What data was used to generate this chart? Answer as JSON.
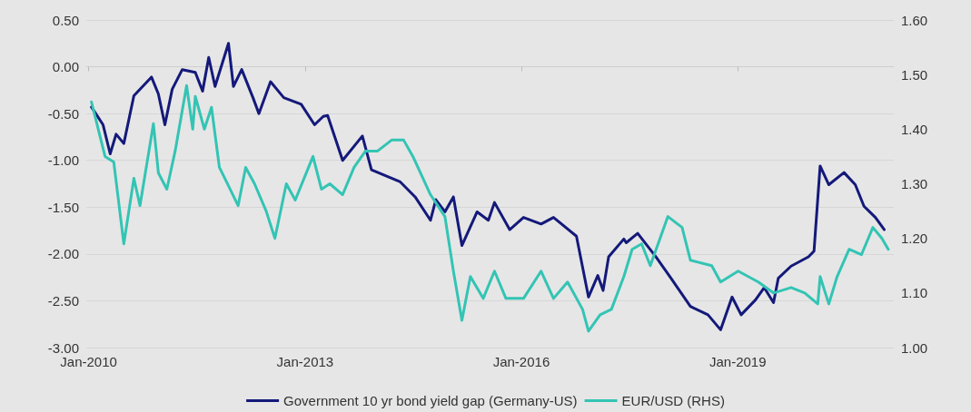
{
  "chart_data": {
    "type": "line",
    "xlim": [
      "2009-12-20",
      "2021-03-01"
    ],
    "xticks": [
      {
        "value": "2010-01-01",
        "label": "Jan-2010"
      },
      {
        "value": "2013-01-01",
        "label": "Jan-2013"
      },
      {
        "value": "2016-01-01",
        "label": "Jan-2016"
      },
      {
        "value": "2019-01-01",
        "label": "Jan-2019"
      }
    ],
    "ylim": [
      -3,
      0.5
    ],
    "yticks": [
      {
        "value": -3,
        "label": "-3.00"
      },
      {
        "value": -2.5,
        "label": "-2.50"
      },
      {
        "value": -2,
        "label": "-2.00"
      },
      {
        "value": -1.5,
        "label": "-1.50"
      },
      {
        "value": -1,
        "label": "-1.00"
      },
      {
        "value": -0.5,
        "label": "-0.50"
      },
      {
        "value": 0,
        "label": "0.00"
      },
      {
        "value": 0.5,
        "label": "0.50"
      }
    ],
    "y2lim": [
      1,
      1.6
    ],
    "y2ticks": [
      {
        "value": 1,
        "label": "1.00"
      },
      {
        "value": 1.1,
        "label": "1.10"
      },
      {
        "value": 1.2,
        "label": "1.20"
      },
      {
        "value": 1.3,
        "label": "1.30"
      },
      {
        "value": 1.4,
        "label": "1.40"
      },
      {
        "value": 1.5,
        "label": "1.50"
      },
      {
        "value": 1.6,
        "label": "1.60"
      }
    ],
    "grid": "y",
    "legend": "bottom",
    "marker": "none",
    "line_style": "solid",
    "series": [
      {
        "name": "Government 10 yr bond yield gap (Germany-US)",
        "color": "#14197a",
        "x": [
          "2010-01-15",
          "2010-03-15",
          "2010-04-20",
          "2010-05-20",
          "2010-06-28",
          "2010-08-18",
          "2010-11-15",
          "2010-12-20",
          "2011-01-22",
          "2011-02-28",
          "2011-04-20",
          "2011-06-25",
          "2011-08-01",
          "2011-09-01",
          "2011-10-03",
          "2011-12-10",
          "2012-01-04",
          "2012-02-15",
          "2012-04-12",
          "2012-05-12",
          "2012-07-10",
          "2012-09-15",
          "2012-12-12",
          "2013-02-18",
          "2013-04-03",
          "2013-04-25",
          "2013-07-10",
          "2013-10-18",
          "2013-12-03",
          "2014-04-28",
          "2014-07-12",
          "2014-09-28",
          "2014-10-25",
          "2014-12-10",
          "2015-01-22",
          "2015-03-06",
          "2015-05-22",
          "2015-07-18",
          "2015-08-18",
          "2015-11-03",
          "2016-01-12",
          "2016-04-10",
          "2016-06-12",
          "2016-10-06",
          "2016-12-06",
          "2017-01-22",
          "2017-02-18",
          "2017-03-18",
          "2017-06-03",
          "2017-06-15",
          "2017-08-12",
          "2017-11-12",
          "2018-01-28",
          "2018-05-06",
          "2018-08-03",
          "2018-10-06",
          "2018-12-03",
          "2019-01-18",
          "2019-04-01",
          "2019-05-15",
          "2019-07-01",
          "2019-07-25",
          "2019-09-28",
          "2019-12-25",
          "2020-01-22",
          "2020-02-22",
          "2020-04-06",
          "2020-06-22",
          "2020-08-18",
          "2020-10-01",
          "2020-11-28",
          "2021-01-12"
        ],
        "values": [
          -0.43,
          -0.62,
          -0.93,
          -0.72,
          -0.82,
          -0.31,
          -0.11,
          -0.29,
          -0.62,
          -0.24,
          -0.03,
          -0.06,
          -0.26,
          0.1,
          -0.21,
          0.25,
          -0.21,
          -0.03,
          -0.33,
          -0.5,
          -0.16,
          -0.33,
          -0.4,
          -0.62,
          -0.53,
          -0.52,
          -1.0,
          -0.74,
          -1.1,
          -1.23,
          -1.39,
          -1.64,
          -1.42,
          -1.55,
          -1.39,
          -1.91,
          -1.55,
          -1.64,
          -1.45,
          -1.74,
          -1.61,
          -1.68,
          -1.61,
          -1.81,
          -2.46,
          -2.23,
          -2.39,
          -2.03,
          -1.84,
          -1.88,
          -1.78,
          -2.03,
          -2.26,
          -2.56,
          -2.65,
          -2.81,
          -2.46,
          -2.65,
          -2.49,
          -2.36,
          -2.52,
          -2.26,
          -2.13,
          -2.03,
          -1.97,
          -1.06,
          -1.26,
          -1.13,
          -1.26,
          -1.49,
          -1.61,
          -1.74
        ]
      },
      {
        "name": "EUR/USD (RHS)",
        "color": "#33c4b4",
        "axis": "y2",
        "x": [
          "2010-01-15",
          "2010-03-25",
          "2010-05-08",
          "2010-06-28",
          "2010-08-18",
          "2010-09-18",
          "2010-11-25",
          "2010-12-20",
          "2011-02-01",
          "2011-03-15",
          "2011-05-12",
          "2011-06-12",
          "2011-06-25",
          "2011-08-10",
          "2011-09-15",
          "2011-10-25",
          "2012-01-28",
          "2012-03-06",
          "2012-04-20",
          "2012-06-18",
          "2012-08-01",
          "2012-09-28",
          "2012-11-12",
          "2013-02-10",
          "2013-03-25",
          "2013-05-06",
          "2013-07-10",
          "2013-09-06",
          "2013-11-03",
          "2014-01-03",
          "2014-03-15",
          "2014-05-15",
          "2014-07-01",
          "2014-09-28",
          "2014-12-10",
          "2015-01-22",
          "2015-03-06",
          "2015-04-18",
          "2015-06-22",
          "2015-08-18",
          "2015-10-15",
          "2016-01-12",
          "2016-04-10",
          "2016-06-12",
          "2016-08-22",
          "2016-11-06",
          "2016-12-06",
          "2017-02-03",
          "2017-04-01",
          "2017-06-03",
          "2017-07-15",
          "2017-09-01",
          "2017-10-15",
          "2018-01-12",
          "2018-03-25",
          "2018-05-06",
          "2018-08-22",
          "2018-10-06",
          "2019-01-03",
          "2019-04-15",
          "2019-07-01",
          "2019-09-28",
          "2019-12-06",
          "2020-02-10",
          "2020-02-22",
          "2020-04-06",
          "2020-05-18",
          "2020-07-18",
          "2020-09-18",
          "2020-11-15",
          "2020-12-31",
          "2021-02-01"
        ],
        "values": [
          1.45,
          1.35,
          1.34,
          1.19,
          1.31,
          1.26,
          1.41,
          1.32,
          1.29,
          1.36,
          1.48,
          1.4,
          1.46,
          1.4,
          1.44,
          1.33,
          1.26,
          1.33,
          1.3,
          1.25,
          1.2,
          1.3,
          1.27,
          1.35,
          1.29,
          1.3,
          1.28,
          1.33,
          1.36,
          1.36,
          1.38,
          1.38,
          1.35,
          1.28,
          1.24,
          1.14,
          1.05,
          1.13,
          1.09,
          1.14,
          1.09,
          1.09,
          1.14,
          1.09,
          1.12,
          1.07,
          1.03,
          1.06,
          1.07,
          1.13,
          1.18,
          1.19,
          1.15,
          1.24,
          1.22,
          1.16,
          1.15,
          1.12,
          1.14,
          1.12,
          1.1,
          1.11,
          1.1,
          1.08,
          1.13,
          1.08,
          1.13,
          1.18,
          1.17,
          1.22,
          1.2,
          1.18
        ]
      }
    ]
  }
}
